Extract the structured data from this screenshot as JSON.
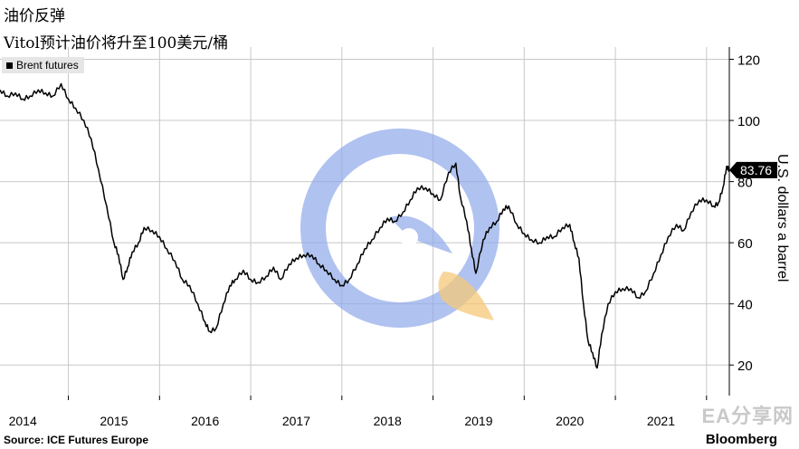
{
  "header": {
    "title": "油价反弹",
    "subtitle": "Vitol预计油价将升至100美元/桶"
  },
  "legend": {
    "label": "Brent futures"
  },
  "footer": {
    "source": "Source: ICE Futures Europe",
    "brand": "Bloomberg"
  },
  "watermark": {
    "text": "EA分享网"
  },
  "chart_data": {
    "type": "line",
    "title": "",
    "xlabel": "",
    "ylabel": "U.S. dollars a barrel",
    "ylim": [
      10,
      124
    ],
    "xlim": [
      2013.75,
      2021.75
    ],
    "grid": true,
    "legend_position": "top-left",
    "x_ticks": [
      "2014",
      "2015",
      "2016",
      "2017",
      "2018",
      "2019",
      "2020",
      "2021"
    ],
    "y_ticks": [
      20,
      40,
      60,
      80,
      100,
      120
    ],
    "last_value_label": "83.76",
    "series": [
      {
        "name": "Brent futures",
        "color": "#000000",
        "x": [
          2013.75,
          2013.83,
          2013.92,
          2014.0,
          2014.08,
          2014.17,
          2014.25,
          2014.33,
          2014.42,
          2014.5,
          2014.58,
          2014.67,
          2014.75,
          2014.83,
          2014.92,
          2015.0,
          2015.05,
          2015.1,
          2015.15,
          2015.2,
          2015.27,
          2015.33,
          2015.42,
          2015.5,
          2015.58,
          2015.67,
          2015.75,
          2015.83,
          2015.92,
          2016.0,
          2016.05,
          2016.12,
          2016.2,
          2016.27,
          2016.33,
          2016.42,
          2016.5,
          2016.58,
          2016.67,
          2016.75,
          2016.83,
          2016.92,
          2017.0,
          2017.08,
          2017.17,
          2017.25,
          2017.33,
          2017.42,
          2017.5,
          2017.58,
          2017.67,
          2017.75,
          2017.83,
          2017.92,
          2018.0,
          2018.08,
          2018.17,
          2018.25,
          2018.33,
          2018.42,
          2018.5,
          2018.58,
          2018.67,
          2018.75,
          2018.8,
          2018.87,
          2018.92,
          2018.97,
          2019.05,
          2019.12,
          2019.2,
          2019.27,
          2019.33,
          2019.42,
          2019.5,
          2019.58,
          2019.67,
          2019.75,
          2019.83,
          2019.92,
          2020.0,
          2020.05,
          2020.1,
          2020.15,
          2020.2,
          2020.25,
          2020.3,
          2020.35,
          2020.42,
          2020.5,
          2020.58,
          2020.67,
          2020.75,
          2020.83,
          2020.92,
          2021.0,
          2021.08,
          2021.17,
          2021.25,
          2021.33,
          2021.42,
          2021.5,
          2021.58,
          2021.63,
          2021.68,
          2021.72,
          2021.75
        ],
        "values": [
          110,
          108,
          109,
          107,
          108,
          110,
          109,
          108,
          112,
          107,
          104,
          100,
          94,
          84,
          72,
          60,
          56,
          48,
          52,
          57,
          60,
          65,
          64,
          62,
          58,
          54,
          48,
          46,
          40,
          34,
          31,
          32,
          40,
          46,
          48,
          51,
          48,
          47,
          49,
          52,
          48,
          53,
          55,
          56,
          56,
          53,
          51,
          48,
          46,
          48,
          53,
          58,
          61,
          65,
          68,
          67,
          70,
          74,
          78,
          78,
          76,
          74,
          83,
          86,
          75,
          67,
          58,
          50,
          61,
          65,
          67,
          71,
          72,
          66,
          63,
          61,
          60,
          62,
          62,
          65,
          66,
          60,
          55,
          40,
          28,
          24,
          19,
          30,
          40,
          44,
          45,
          45,
          42,
          44,
          50,
          56,
          62,
          66,
          64,
          70,
          74,
          74,
          72,
          73,
          78,
          85,
          83.76
        ]
      }
    ]
  }
}
